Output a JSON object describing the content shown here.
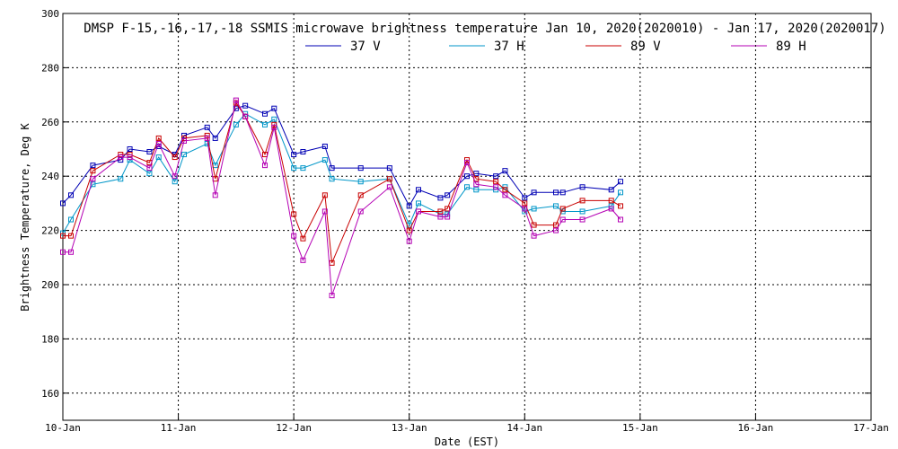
{
  "chart_data": {
    "type": "line",
    "title": "DMSP F-15,-16,-17,-18 SSMIS microwave brightness temperature Jan 10, 2020(2020010) - Jan 17, 2020(2020017)",
    "xlabel": "Date (EST)",
    "ylabel": "Brightness Temperature, Deg K",
    "xlim": [
      "10-Jan",
      "17-Jan"
    ],
    "ylim": [
      150,
      300
    ],
    "grid": true,
    "legend_position": "top-center",
    "x_ticks": [
      "10-Jan",
      "11-Jan",
      "12-Jan",
      "13-Jan",
      "14-Jan",
      "15-Jan",
      "16-Jan",
      "17-Jan"
    ],
    "y_ticks": [
      160,
      180,
      200,
      220,
      240,
      260,
      280,
      300
    ],
    "series": [
      {
        "name": "37 V",
        "color": "#0000b4",
        "points": [
          [
            0.0,
            230
          ],
          [
            0.07,
            233
          ],
          [
            0.26,
            244
          ],
          [
            0.5,
            246
          ],
          [
            0.58,
            250
          ],
          [
            0.75,
            249
          ],
          [
            0.83,
            251
          ],
          [
            0.97,
            248
          ],
          [
            1.05,
            255
          ],
          [
            1.25,
            258
          ],
          [
            1.32,
            254
          ],
          [
            1.5,
            265
          ],
          [
            1.58,
            266
          ],
          [
            1.75,
            263
          ],
          [
            1.83,
            265
          ],
          [
            2.0,
            248
          ],
          [
            2.08,
            249
          ],
          [
            2.27,
            251
          ],
          [
            2.33,
            243
          ],
          [
            2.58,
            243
          ],
          [
            2.83,
            243
          ],
          [
            3.0,
            229
          ],
          [
            3.08,
            235
          ],
          [
            3.27,
            232
          ],
          [
            3.33,
            233
          ],
          [
            3.5,
            240
          ],
          [
            3.58,
            241
          ],
          [
            3.75,
            240
          ],
          [
            3.83,
            242
          ],
          [
            4.0,
            232
          ],
          [
            4.08,
            234
          ],
          [
            4.27,
            234
          ],
          [
            4.33,
            234
          ],
          [
            4.5,
            236
          ],
          [
            4.75,
            235
          ],
          [
            4.83,
            238
          ]
        ]
      },
      {
        "name": "37 H",
        "color": "#0096c8",
        "points": [
          [
            0.0,
            219
          ],
          [
            0.07,
            224
          ],
          [
            0.26,
            237
          ],
          [
            0.5,
            239
          ],
          [
            0.58,
            246
          ],
          [
            0.75,
            241
          ],
          [
            0.83,
            247
          ],
          [
            0.97,
            238
          ],
          [
            1.05,
            248
          ],
          [
            1.25,
            252
          ],
          [
            1.32,
            244
          ],
          [
            1.5,
            259
          ],
          [
            1.58,
            263
          ],
          [
            1.75,
            259
          ],
          [
            1.83,
            261
          ],
          [
            2.0,
            243
          ],
          [
            2.08,
            243
          ],
          [
            2.27,
            246
          ],
          [
            2.33,
            239
          ],
          [
            2.58,
            238
          ],
          [
            2.83,
            239
          ],
          [
            3.0,
            222
          ],
          [
            3.08,
            230
          ],
          [
            3.27,
            226
          ],
          [
            3.33,
            226
          ],
          [
            3.5,
            236
          ],
          [
            3.58,
            235
          ],
          [
            3.75,
            235
          ],
          [
            3.83,
            236
          ],
          [
            4.0,
            227
          ],
          [
            4.08,
            228
          ],
          [
            4.27,
            229
          ],
          [
            4.33,
            227
          ],
          [
            4.5,
            227
          ],
          [
            4.75,
            229
          ],
          [
            4.83,
            234
          ]
        ]
      },
      {
        "name": "89 V",
        "color": "#c80000",
        "points": [
          [
            0.0,
            218
          ],
          [
            0.07,
            218
          ],
          [
            0.26,
            242
          ],
          [
            0.5,
            248
          ],
          [
            0.58,
            248
          ],
          [
            0.75,
            245
          ],
          [
            0.83,
            254
          ],
          [
            0.97,
            247
          ],
          [
            1.05,
            254
          ],
          [
            1.25,
            255
          ],
          [
            1.32,
            239
          ],
          [
            1.5,
            267
          ],
          [
            1.58,
            262
          ],
          [
            1.75,
            248
          ],
          [
            1.83,
            259
          ],
          [
            2.0,
            226
          ],
          [
            2.08,
            217
          ],
          [
            2.27,
            233
          ],
          [
            2.33,
            208
          ],
          [
            2.58,
            233
          ],
          [
            2.83,
            239
          ],
          [
            3.0,
            220
          ],
          [
            3.08,
            227
          ],
          [
            3.27,
            227
          ],
          [
            3.33,
            228
          ],
          [
            3.5,
            246
          ],
          [
            3.58,
            239
          ],
          [
            3.75,
            238
          ],
          [
            3.83,
            235
          ],
          [
            4.0,
            230
          ],
          [
            4.08,
            222
          ],
          [
            4.27,
            222
          ],
          [
            4.33,
            228
          ],
          [
            4.5,
            231
          ],
          [
            4.75,
            231
          ],
          [
            4.83,
            229
          ]
        ]
      },
      {
        "name": "89 H",
        "color": "#b400b4",
        "points": [
          [
            0.0,
            212
          ],
          [
            0.07,
            212
          ],
          [
            0.26,
            239
          ],
          [
            0.5,
            247
          ],
          [
            0.58,
            247
          ],
          [
            0.75,
            243
          ],
          [
            0.83,
            252
          ],
          [
            0.97,
            240
          ],
          [
            1.05,
            253
          ],
          [
            1.25,
            254
          ],
          [
            1.32,
            233
          ],
          [
            1.5,
            268
          ],
          [
            1.58,
            262
          ],
          [
            1.75,
            244
          ],
          [
            1.83,
            258
          ],
          [
            2.0,
            218
          ],
          [
            2.08,
            209
          ],
          [
            2.27,
            227
          ],
          [
            2.33,
            196
          ],
          [
            2.58,
            227
          ],
          [
            2.83,
            236
          ],
          [
            3.0,
            216
          ],
          [
            3.08,
            227
          ],
          [
            3.27,
            225
          ],
          [
            3.33,
            225
          ],
          [
            3.5,
            245
          ],
          [
            3.58,
            237
          ],
          [
            3.75,
            236
          ],
          [
            3.83,
            233
          ],
          [
            4.0,
            228
          ],
          [
            4.08,
            218
          ],
          [
            4.27,
            220
          ],
          [
            4.33,
            224
          ],
          [
            4.5,
            224
          ],
          [
            4.75,
            228
          ],
          [
            4.83,
            224
          ]
        ]
      }
    ]
  }
}
